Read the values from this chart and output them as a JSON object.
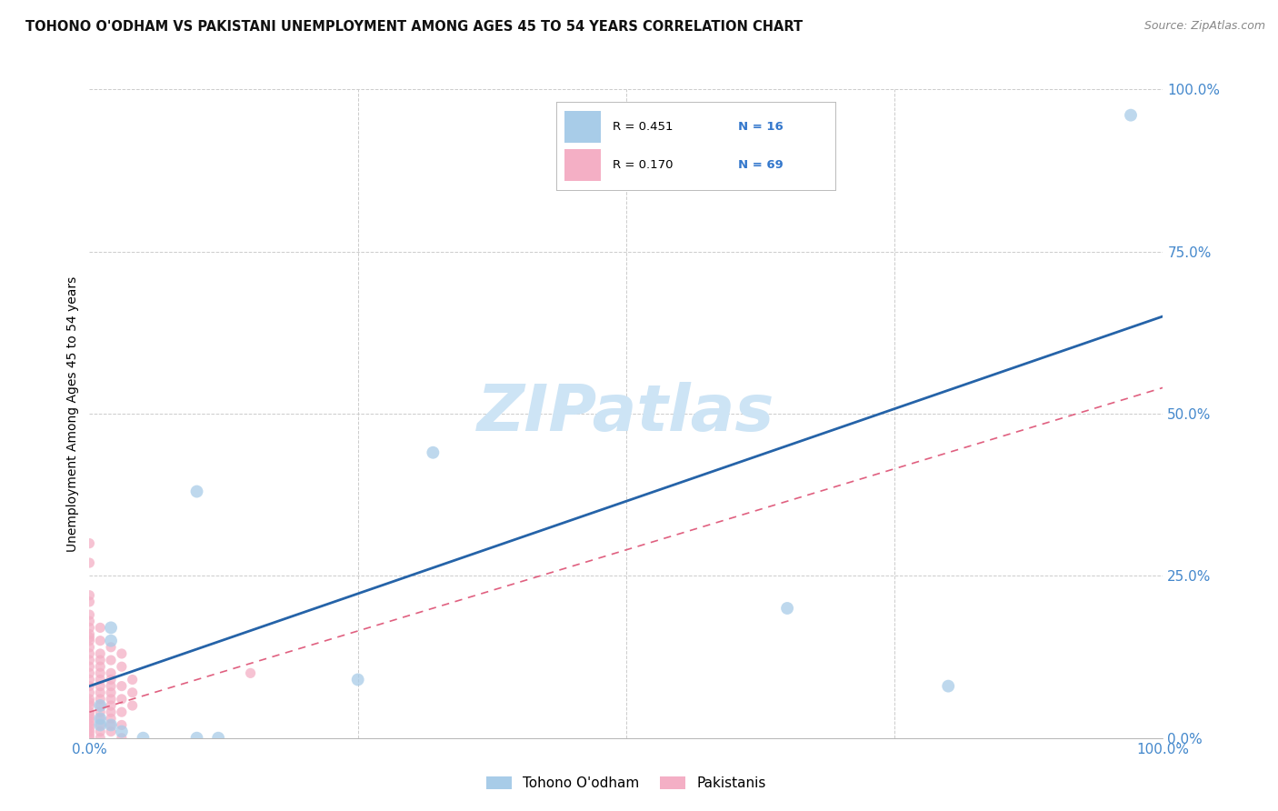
{
  "title": "TOHONO O'ODHAM VS PAKISTANI UNEMPLOYMENT AMONG AGES 45 TO 54 YEARS CORRELATION CHART",
  "source": "Source: ZipAtlas.com",
  "ylabel": "Unemployment Among Ages 45 to 54 years",
  "xlim": [
    0,
    1
  ],
  "ylim": [
    0,
    1
  ],
  "ytick_labels": [
    "0.0%",
    "25.0%",
    "50.0%",
    "75.0%",
    "100.0%"
  ],
  "ytick_positions": [
    0,
    0.25,
    0.5,
    0.75,
    1.0
  ],
  "grid_color": "#cccccc",
  "background_color": "#ffffff",
  "watermark": "ZIPatlas",
  "watermark_color": "#cde4f5",
  "blue_color": "#a8cce8",
  "pink_color": "#f4afc5",
  "blue_line_color": "#2563a8",
  "pink_line_color": "#e06080",
  "tohono_points": [
    [
      0.02,
      0.17
    ],
    [
      0.02,
      0.15
    ],
    [
      0.01,
      0.05
    ],
    [
      0.01,
      0.03
    ],
    [
      0.01,
      0.02
    ],
    [
      0.02,
      0.02
    ],
    [
      0.03,
      0.01
    ],
    [
      0.05,
      0.0
    ],
    [
      0.25,
      0.09
    ],
    [
      0.32,
      0.44
    ],
    [
      0.65,
      0.2
    ],
    [
      0.8,
      0.08
    ],
    [
      0.97,
      0.96
    ],
    [
      0.1,
      0.0
    ],
    [
      0.1,
      0.38
    ],
    [
      0.12,
      0.0
    ]
  ],
  "pakistani_points": [
    [
      0.0,
      0.3
    ],
    [
      0.0,
      0.27
    ],
    [
      0.0,
      0.22
    ],
    [
      0.0,
      0.21
    ],
    [
      0.0,
      0.19
    ],
    [
      0.0,
      0.18
    ],
    [
      0.0,
      0.17
    ],
    [
      0.0,
      0.16
    ],
    [
      0.0,
      0.155
    ],
    [
      0.0,
      0.15
    ],
    [
      0.0,
      0.14
    ],
    [
      0.0,
      0.13
    ],
    [
      0.0,
      0.12
    ],
    [
      0.0,
      0.11
    ],
    [
      0.0,
      0.1
    ],
    [
      0.0,
      0.09
    ],
    [
      0.0,
      0.08
    ],
    [
      0.0,
      0.07
    ],
    [
      0.0,
      0.06
    ],
    [
      0.0,
      0.055
    ],
    [
      0.0,
      0.05
    ],
    [
      0.0,
      0.04
    ],
    [
      0.0,
      0.035
    ],
    [
      0.0,
      0.03
    ],
    [
      0.0,
      0.025
    ],
    [
      0.0,
      0.02
    ],
    [
      0.0,
      0.015
    ],
    [
      0.0,
      0.01
    ],
    [
      0.0,
      0.005
    ],
    [
      0.0,
      0.0
    ],
    [
      0.01,
      0.17
    ],
    [
      0.01,
      0.15
    ],
    [
      0.01,
      0.13
    ],
    [
      0.01,
      0.12
    ],
    [
      0.01,
      0.11
    ],
    [
      0.01,
      0.1
    ],
    [
      0.01,
      0.09
    ],
    [
      0.01,
      0.08
    ],
    [
      0.01,
      0.07
    ],
    [
      0.01,
      0.06
    ],
    [
      0.01,
      0.05
    ],
    [
      0.01,
      0.04
    ],
    [
      0.01,
      0.03
    ],
    [
      0.01,
      0.02
    ],
    [
      0.01,
      0.01
    ],
    [
      0.01,
      0.0
    ],
    [
      0.02,
      0.14
    ],
    [
      0.02,
      0.12
    ],
    [
      0.02,
      0.1
    ],
    [
      0.02,
      0.09
    ],
    [
      0.02,
      0.08
    ],
    [
      0.02,
      0.07
    ],
    [
      0.02,
      0.06
    ],
    [
      0.02,
      0.05
    ],
    [
      0.02,
      0.04
    ],
    [
      0.02,
      0.03
    ],
    [
      0.02,
      0.02
    ],
    [
      0.02,
      0.01
    ],
    [
      0.03,
      0.13
    ],
    [
      0.03,
      0.11
    ],
    [
      0.03,
      0.08
    ],
    [
      0.03,
      0.06
    ],
    [
      0.03,
      0.04
    ],
    [
      0.03,
      0.02
    ],
    [
      0.03,
      0.0
    ],
    [
      0.04,
      0.09
    ],
    [
      0.04,
      0.07
    ],
    [
      0.04,
      0.05
    ],
    [
      0.15,
      0.1
    ]
  ],
  "tohono_line": [
    [
      0,
      0.08
    ],
    [
      1.0,
      0.65
    ]
  ],
  "pakistani_line": [
    [
      0,
      0.04
    ],
    [
      1.0,
      0.54
    ]
  ],
  "marker_size_blue": 100,
  "marker_size_pink": 65,
  "legend_items": [
    {
      "color": "#a8cce8",
      "r": "R = 0.451",
      "n": "N = 16"
    },
    {
      "color": "#f4afc5",
      "r": "R = 0.170",
      "n": "N = 69"
    }
  ],
  "bottom_legend": [
    "Tohono O'odham",
    "Pakistanis"
  ]
}
